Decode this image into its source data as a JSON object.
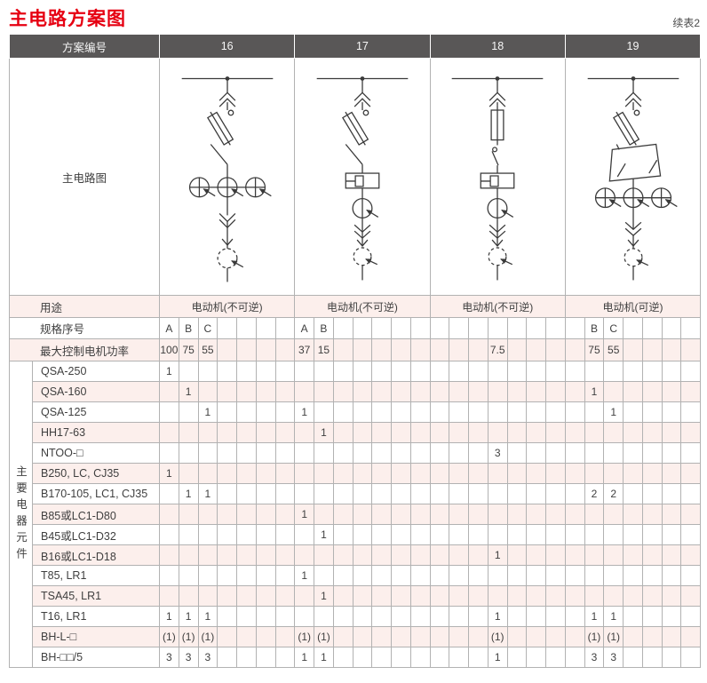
{
  "title": "主电路方案图",
  "continuation_label": "续表2",
  "colors": {
    "accent_red": "#e60012",
    "header_bg": "#595757",
    "stripe_pink": "#fcefec",
    "grid_line": "#b2b2b2"
  },
  "table": {
    "scheme_label": "方案编号",
    "schemes": [
      "16",
      "17",
      "18",
      "19"
    ],
    "diagram_row_label": "主电路图",
    "usage_label": "用途",
    "usages": [
      "电动机(不可逆)",
      "电动机(不可逆)",
      "电动机(不可逆)",
      "电动机(可逆)"
    ],
    "spec_label": "规格序号",
    "spec_cells": [
      "A",
      "B",
      "C",
      "",
      "",
      "",
      "",
      "A",
      "B",
      "",
      "",
      "",
      "",
      "",
      "",
      "",
      "",
      "",
      "",
      "",
      "",
      "",
      "B",
      "C",
      "",
      "",
      "",
      ""
    ],
    "power_label": "最大控制电机功率",
    "power_cells": [
      "100",
      "75",
      "55",
      "",
      "",
      "",
      "",
      "37",
      "15",
      "",
      "",
      "",
      "",
      "",
      "",
      "",
      "",
      "7.5",
      "",
      "",
      "",
      "",
      "75",
      "55",
      "",
      "",
      "",
      ""
    ],
    "group_label": "主要电器元件",
    "component_rows": [
      {
        "label": "QSA-250",
        "cells": [
          "1",
          "",
          "",
          "",
          "",
          "",
          "",
          "",
          "",
          "",
          "",
          "",
          "",
          "",
          "",
          "",
          "",
          "",
          "",
          "",
          "",
          "",
          "",
          "",
          "",
          "",
          "",
          ""
        ]
      },
      {
        "label": "QSA-160",
        "cells": [
          "",
          "1",
          "",
          "",
          "",
          "",
          "",
          "",
          "",
          "",
          "",
          "",
          "",
          "",
          "",
          "",
          "",
          "",
          "",
          "",
          "",
          "",
          "1",
          "",
          "",
          "",
          "",
          ""
        ]
      },
      {
        "label": "QSA-125",
        "cells": [
          "",
          "",
          "1",
          "",
          "",
          "",
          "",
          "1",
          "",
          "",
          "",
          "",
          "",
          "",
          "",
          "",
          "",
          "",
          "",
          "",
          "",
          "",
          "",
          "1",
          "",
          "",
          "",
          ""
        ]
      },
      {
        "label": "HH17-63",
        "cells": [
          "",
          "",
          "",
          "",
          "",
          "",
          "",
          "",
          "1",
          "",
          "",
          "",
          "",
          "",
          "",
          "",
          "",
          "",
          "",
          "",
          "",
          "",
          "",
          "",
          "",
          "",
          "",
          ""
        ]
      },
      {
        "label": "NTOO-□",
        "cells": [
          "",
          "",
          "",
          "",
          "",
          "",
          "",
          "",
          "",
          "",
          "",
          "",
          "",
          "",
          "",
          "",
          "",
          "3",
          "",
          "",
          "",
          "",
          "",
          "",
          "",
          "",
          "",
          ""
        ]
      },
      {
        "label": "B250, LC, CJ35",
        "cells": [
          "1",
          "",
          "",
          "",
          "",
          "",
          "",
          "",
          "",
          "",
          "",
          "",
          "",
          "",
          "",
          "",
          "",
          "",
          "",
          "",
          "",
          "",
          "",
          "",
          "",
          "",
          "",
          ""
        ]
      },
      {
        "label": "B170-105, LC1, CJ35",
        "cells": [
          "",
          "1",
          "1",
          "",
          "",
          "",
          "",
          "",
          "",
          "",
          "",
          "",
          "",
          "",
          "",
          "",
          "",
          "",
          "",
          "",
          "",
          "",
          "2",
          "2",
          "",
          "",
          "",
          ""
        ]
      },
      {
        "label": "B85或LC1-D80",
        "cells": [
          "",
          "",
          "",
          "",
          "",
          "",
          "",
          "1",
          "",
          "",
          "",
          "",
          "",
          "",
          "",
          "",
          "",
          "",
          "",
          "",
          "",
          "",
          "",
          "",
          "",
          "",
          "",
          ""
        ]
      },
      {
        "label": "B45或LC1-D32",
        "cells": [
          "",
          "",
          "",
          "",
          "",
          "",
          "",
          "",
          "1",
          "",
          "",
          "",
          "",
          "",
          "",
          "",
          "",
          "",
          "",
          "",
          "",
          "",
          "",
          "",
          "",
          "",
          "",
          ""
        ]
      },
      {
        "label": "B16或LC1-D18",
        "cells": [
          "",
          "",
          "",
          "",
          "",
          "",
          "",
          "",
          "",
          "",
          "",
          "",
          "",
          "",
          "",
          "",
          "",
          "1",
          "",
          "",
          "",
          "",
          "",
          "",
          "",
          "",
          "",
          ""
        ]
      },
      {
        "label": "T85, LR1",
        "cells": [
          "",
          "",
          "",
          "",
          "",
          "",
          "",
          "1",
          "",
          "",
          "",
          "",
          "",
          "",
          "",
          "",
          "",
          "",
          "",
          "",
          "",
          "",
          "",
          "",
          "",
          "",
          "",
          ""
        ]
      },
      {
        "label": "TSA45, LR1",
        "cells": [
          "",
          "",
          "",
          "",
          "",
          "",
          "",
          "",
          "1",
          "",
          "",
          "",
          "",
          "",
          "",
          "",
          "",
          "",
          "",
          "",
          "",
          "",
          "",
          "",
          "",
          "",
          "",
          ""
        ]
      },
      {
        "label": "T16, LR1",
        "cells": [
          "1",
          "1",
          "1",
          "",
          "",
          "",
          "",
          "",
          "",
          "",
          "",
          "",
          "",
          "",
          "",
          "",
          "",
          "1",
          "",
          "",
          "",
          "",
          "1",
          "1",
          "",
          "",
          "",
          ""
        ]
      },
      {
        "label": "BH-L-□",
        "cells": [
          "(1)",
          "(1)",
          "(1)",
          "",
          "",
          "",
          "",
          "(1)",
          "(1)",
          "",
          "",
          "",
          "",
          "",
          "",
          "",
          "",
          "(1)",
          "",
          "",
          "",
          "",
          "(1)",
          "(1)",
          "",
          "",
          "",
          ""
        ]
      },
      {
        "label": "BH-□□/5",
        "cells": [
          "3",
          "3",
          "3",
          "",
          "",
          "",
          "",
          "1",
          "1",
          "",
          "",
          "",
          "",
          "",
          "",
          "",
          "",
          "1",
          "",
          "",
          "",
          "",
          "3",
          "3",
          "",
          "",
          "",
          ""
        ]
      }
    ]
  }
}
